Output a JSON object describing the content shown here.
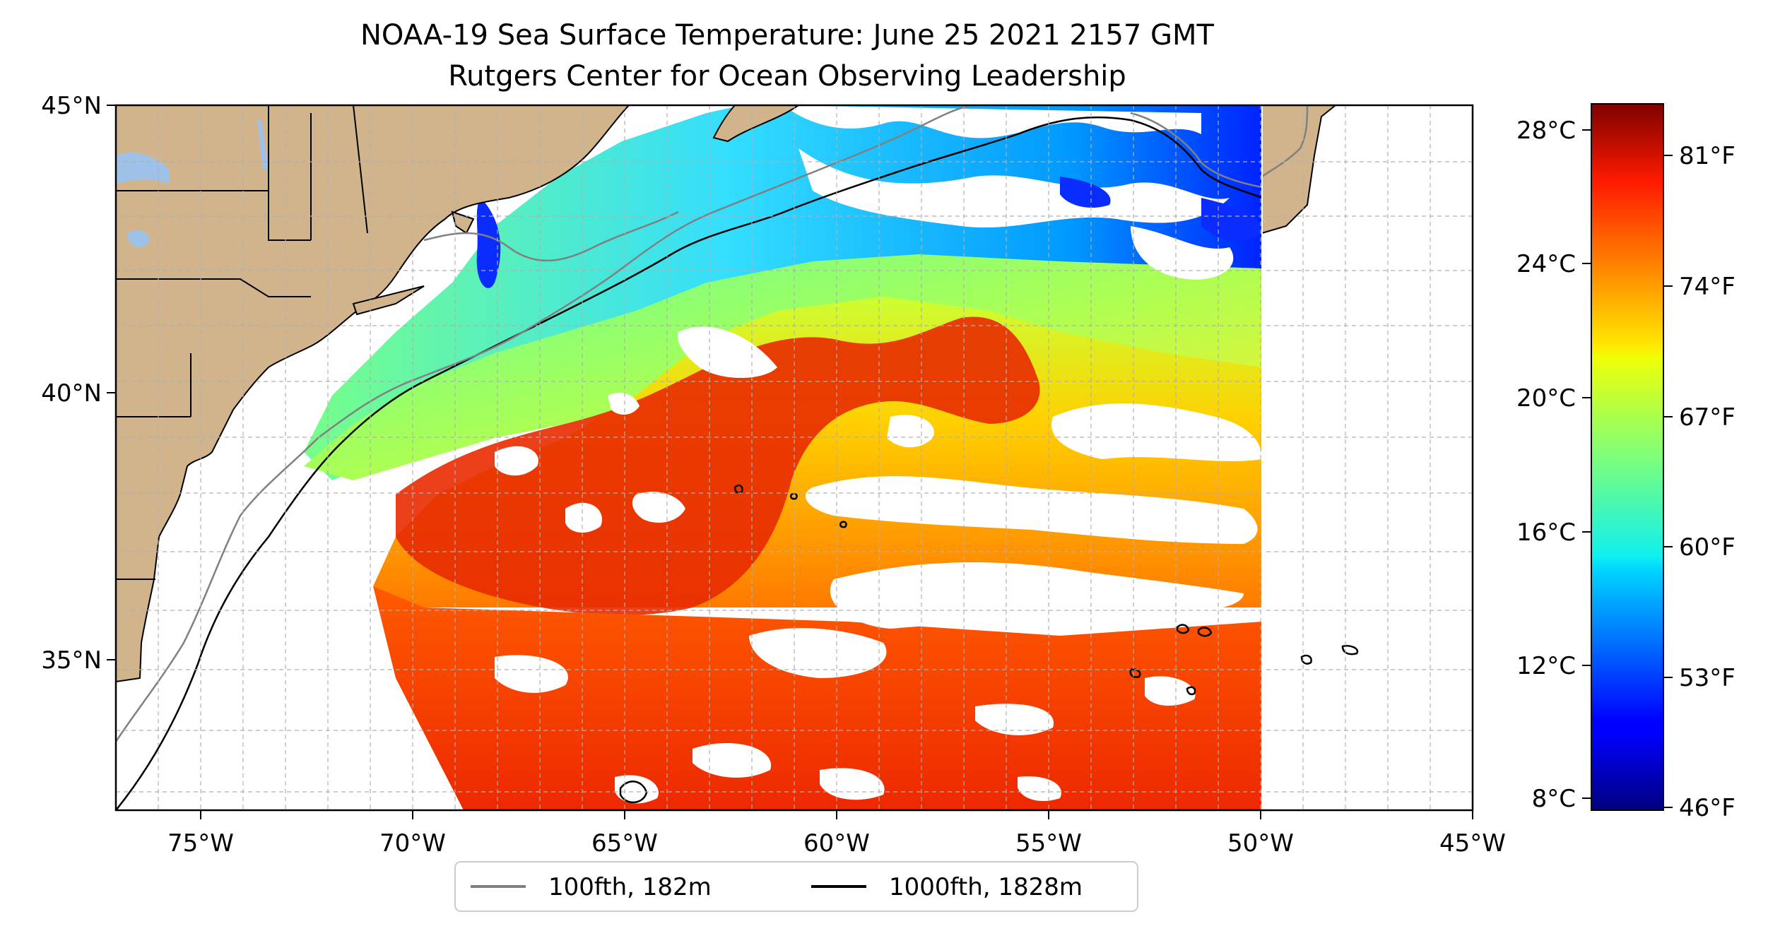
{
  "title": {
    "line1": "NOAA-19 Sea Surface Temperature: June 25 2021 2157 GMT",
    "line2": "Rutgers Center for Ocean Observing Leadership"
  },
  "map": {
    "lon_range": [
      -77,
      -45
    ],
    "lat_range": [
      32.2,
      45
    ],
    "swath_east_edge_lon": -50,
    "x_ticks": [
      {
        "lon": -75,
        "label": "75°W"
      },
      {
        "lon": -70,
        "label": "70°W"
      },
      {
        "lon": -65,
        "label": "65°W"
      },
      {
        "lon": -60,
        "label": "60°W"
      },
      {
        "lon": -55,
        "label": "55°W"
      },
      {
        "lon": -50,
        "label": "50°W"
      },
      {
        "lon": -45,
        "label": "45°W"
      }
    ],
    "y_ticks": [
      {
        "lat": 45,
        "label": "45°N"
      },
      {
        "lat": 40,
        "label": "40°N"
      },
      {
        "lat": 35,
        "label": "35°N"
      }
    ],
    "grid": "dashed, 1 degree",
    "colors": {
      "land": "#d2b48c",
      "lakes": "#9ec1e8",
      "isobath_100fth": "#808080",
      "isobath_1000fth": "#000000",
      "no_data": "#ffffff"
    }
  },
  "legend": {
    "placement": "bottom-center",
    "items": [
      {
        "label": "100fth, 182m",
        "color": "#808080"
      },
      {
        "label": "1000fth, 1828m",
        "color": "#000000"
      }
    ]
  },
  "colorbar": {
    "colormap": "jet",
    "celsius_range": [
      7.5,
      28.9
    ],
    "celsius_ticks": [
      {
        "value": 8,
        "label": "8°C"
      },
      {
        "value": 12,
        "label": "12°C"
      },
      {
        "value": 16,
        "label": "16°C"
      },
      {
        "value": 20,
        "label": "20°C"
      },
      {
        "value": 24,
        "label": "24°C"
      },
      {
        "value": 28,
        "label": "28°C"
      }
    ],
    "fahrenheit_ticks": [
      {
        "value": 46,
        "label": "46°F"
      },
      {
        "value": 53,
        "label": "53°F"
      },
      {
        "value": 60,
        "label": "60°F"
      },
      {
        "value": 67,
        "label": "67°F"
      },
      {
        "value": 74,
        "label": "74°F"
      },
      {
        "value": 81,
        "label": "81°F"
      }
    ]
  }
}
